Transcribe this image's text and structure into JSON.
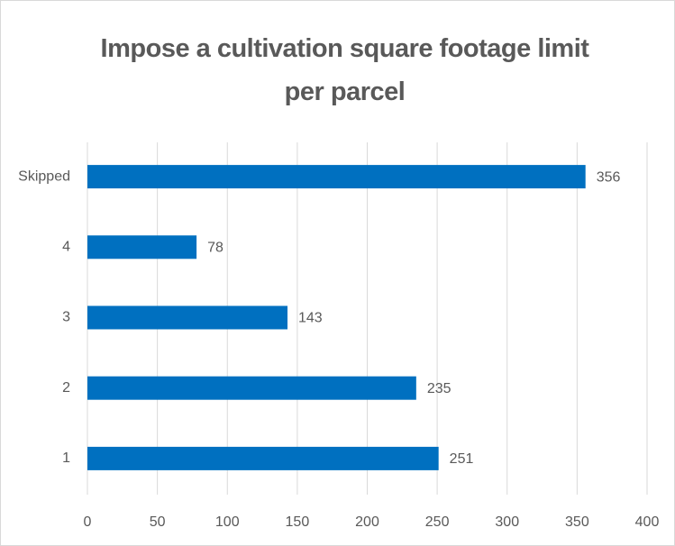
{
  "chart_data": {
    "type": "hbar",
    "title": "Impose a cultivation square footage limit per parcel",
    "categories": [
      "Skipped",
      "4",
      "3",
      "2",
      "1"
    ],
    "values": [
      356,
      78,
      143,
      235,
      251
    ],
    "color": "#0070c0",
    "xlim": [
      0,
      400
    ],
    "xticks": [
      0,
      50,
      100,
      150,
      200,
      250,
      300,
      350,
      400
    ],
    "grid": true
  }
}
